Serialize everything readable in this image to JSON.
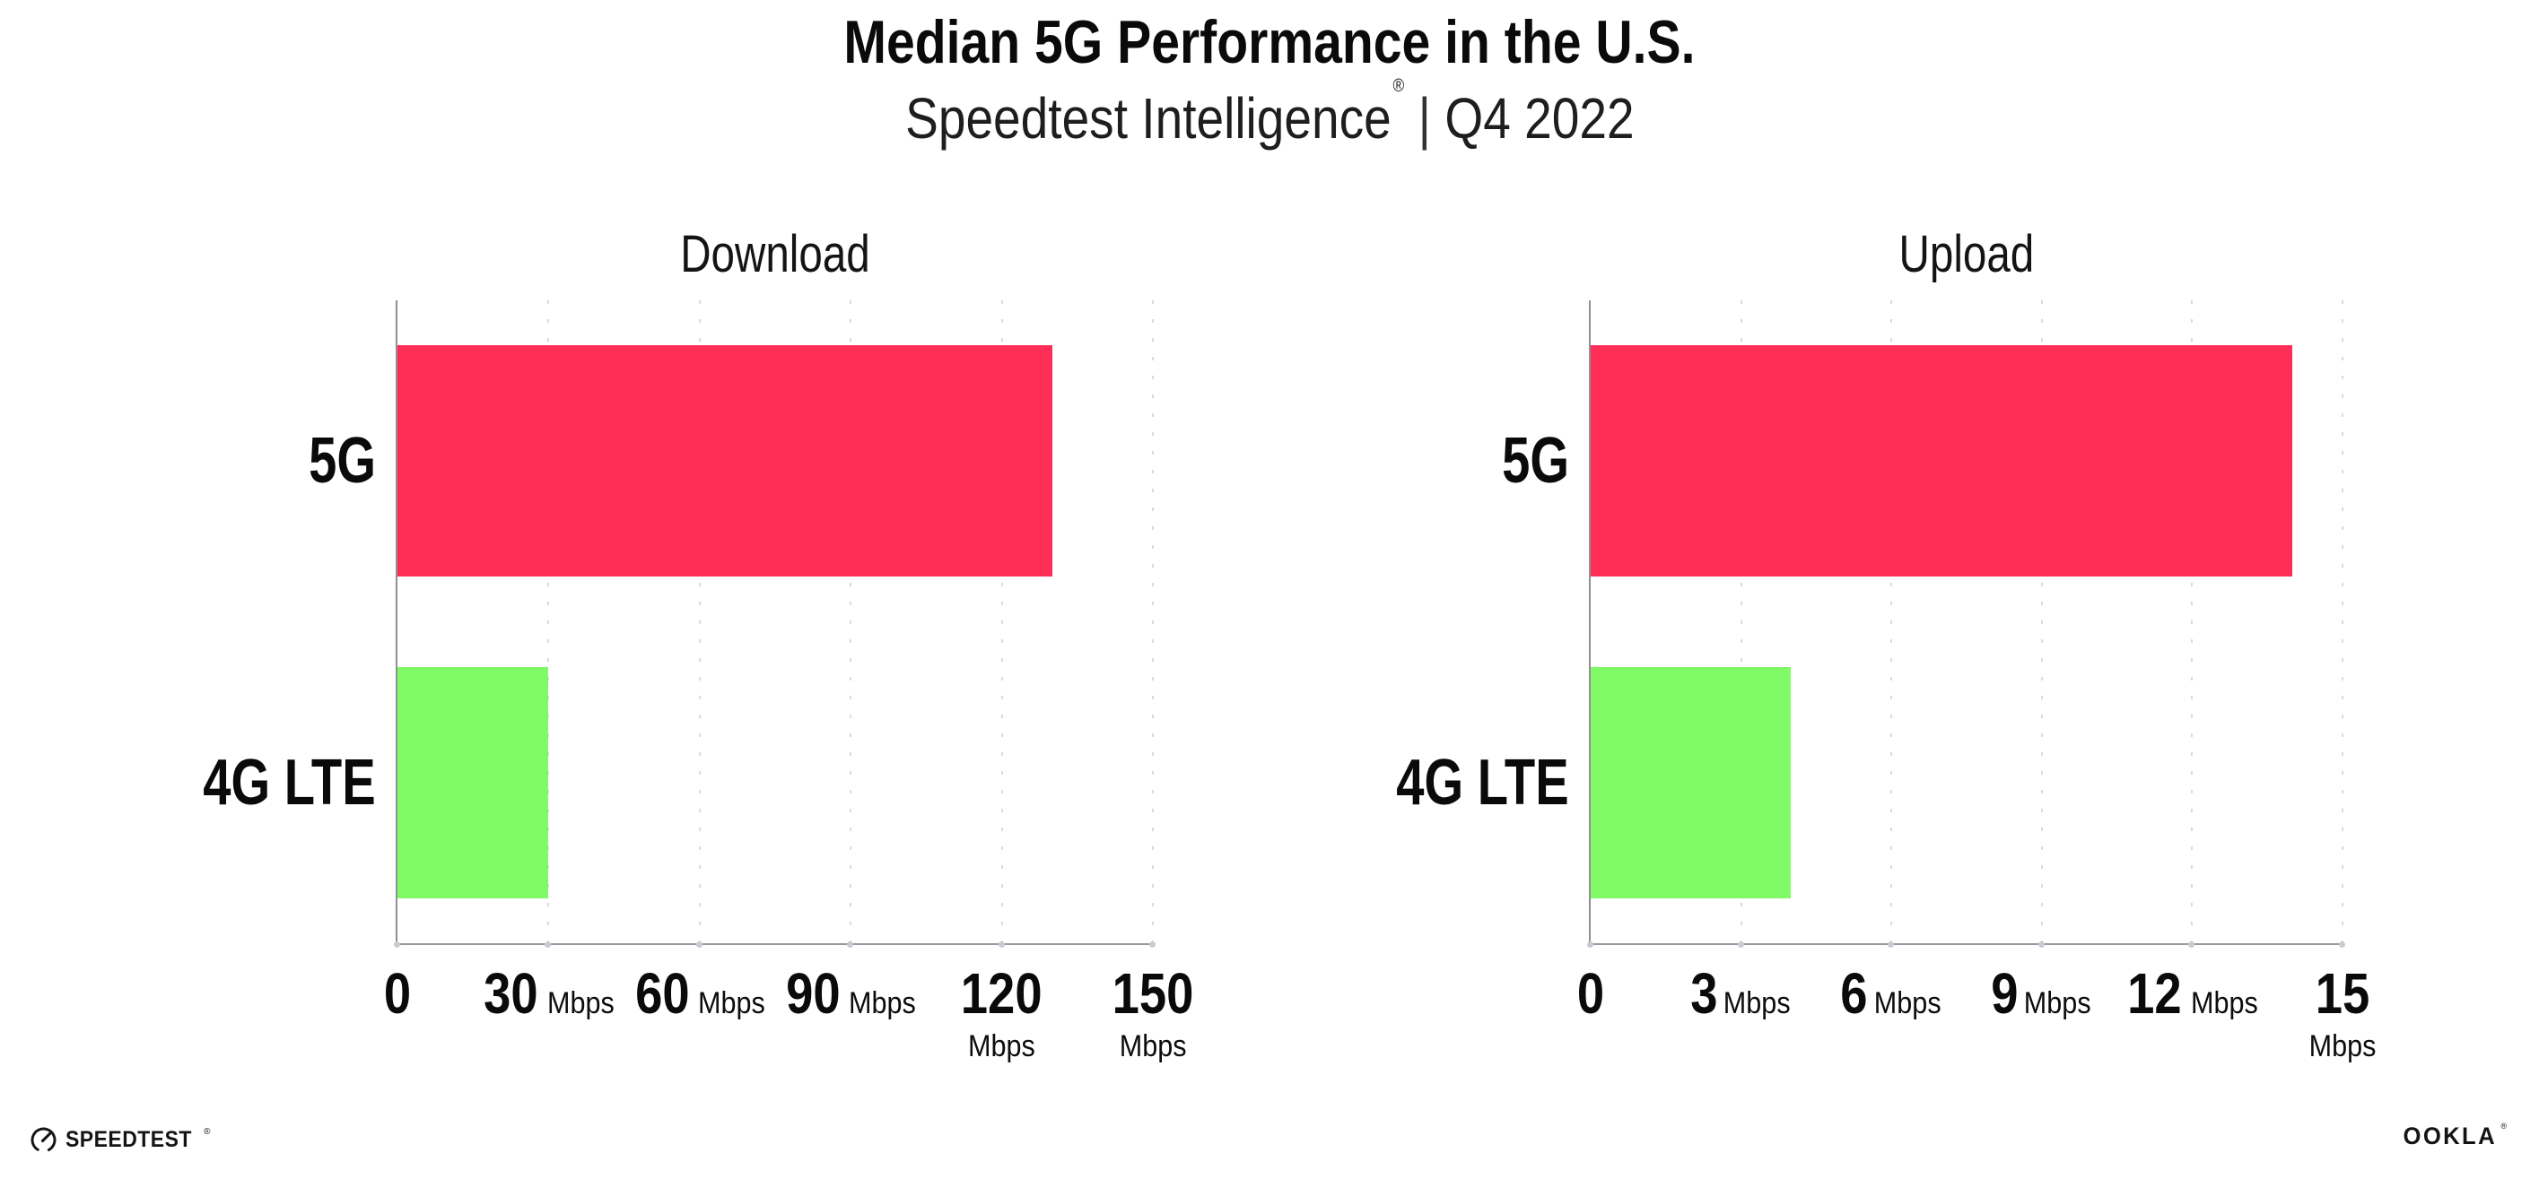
{
  "header": {
    "title": "Median 5G Performance in the U.S.",
    "subtitle": {
      "brand": "Speedtest Intelligence",
      "mark": "®",
      "separator": "|",
      "period": "Q4 2022"
    }
  },
  "colors": {
    "bar_5g": "#FF2E56",
    "bar_4g_lte": "#80FA66",
    "axis": "#98989E",
    "grid_dot": "#D9DADE",
    "text": "#0A0A0B"
  },
  "chart_data": [
    {
      "type": "bar",
      "orientation": "horizontal",
      "title": "Download",
      "categories": [
        "5G",
        "4G LTE"
      ],
      "values": [
        130,
        30
      ],
      "unit": "Mbps",
      "xlim": [
        0,
        150
      ],
      "xticks": [
        0,
        30,
        60,
        90,
        120,
        150
      ],
      "bar_colors": [
        "#FF2E56",
        "#80FA66"
      ],
      "grid": "vertical-dotted",
      "legend": "none"
    },
    {
      "type": "bar",
      "orientation": "horizontal",
      "title": "Upload",
      "categories": [
        "5G",
        "4G LTE"
      ],
      "values": [
        14,
        4
      ],
      "unit": "Mbps",
      "xlim": [
        0,
        15
      ],
      "xticks": [
        0,
        3,
        6,
        9,
        12,
        15
      ],
      "bar_colors": [
        "#FF2E56",
        "#80FA66"
      ],
      "grid": "vertical-dotted",
      "legend": "none"
    }
  ],
  "footer": {
    "speedtest": {
      "label": "SPEEDTEST",
      "mark": "®",
      "icon": "speedtest-gauge-icon"
    },
    "ookla": {
      "label": "OOKLA",
      "mark": "®"
    }
  }
}
